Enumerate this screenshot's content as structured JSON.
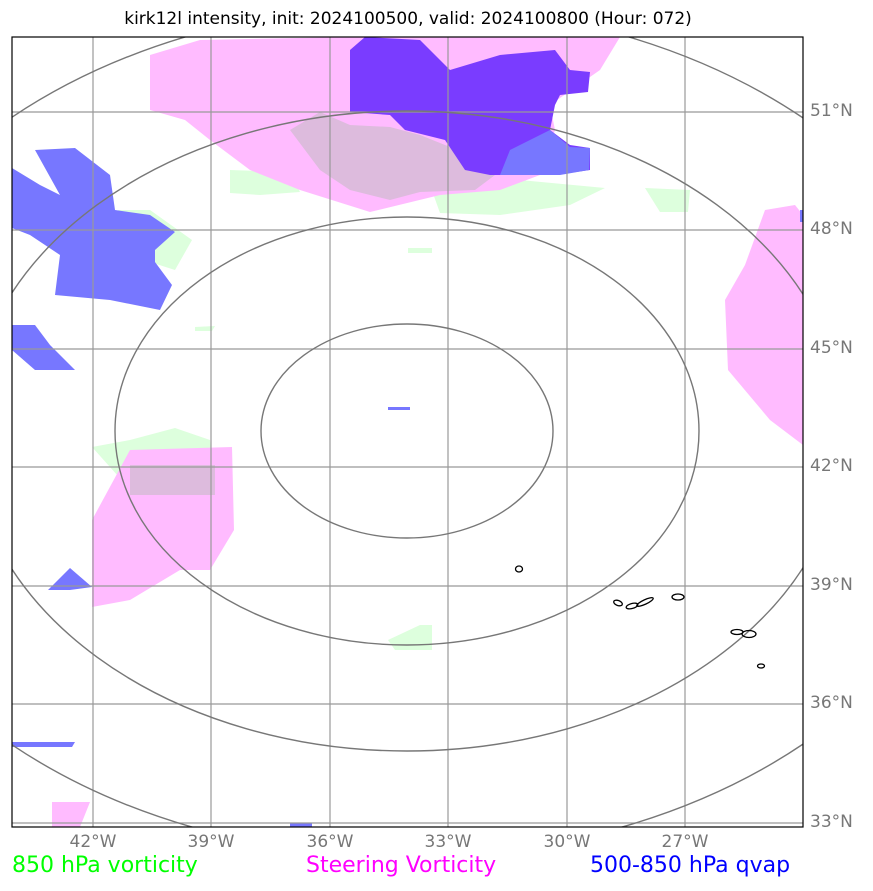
{
  "title": "kirk12l intensity, init: 2024100500, valid: 2024100800 (Hour: 072)",
  "lat_labels": [
    "51°N",
    "48°N",
    "45°N",
    "42°N",
    "39°N",
    "36°N",
    "33°N"
  ],
  "lon_labels": [
    "42°W",
    "39°W",
    "36°W",
    "33°W",
    "30°W",
    "27°W"
  ],
  "legend": [
    {
      "label": "850 hPa vorticity",
      "color": "#00ff00"
    },
    {
      "label": "Steering Vorticity",
      "color": "#ff00ff"
    },
    {
      "label": "500-850 hPa qvap",
      "color": "#0000ff"
    }
  ],
  "colors": {
    "vorticity_850": "#ddffdd",
    "steering_vorticity": "#ffbbff",
    "qvap": "#7777ff",
    "qvap_strong": "#7a3cff",
    "grid": "#999999",
    "range_rings": "#777777"
  }
}
